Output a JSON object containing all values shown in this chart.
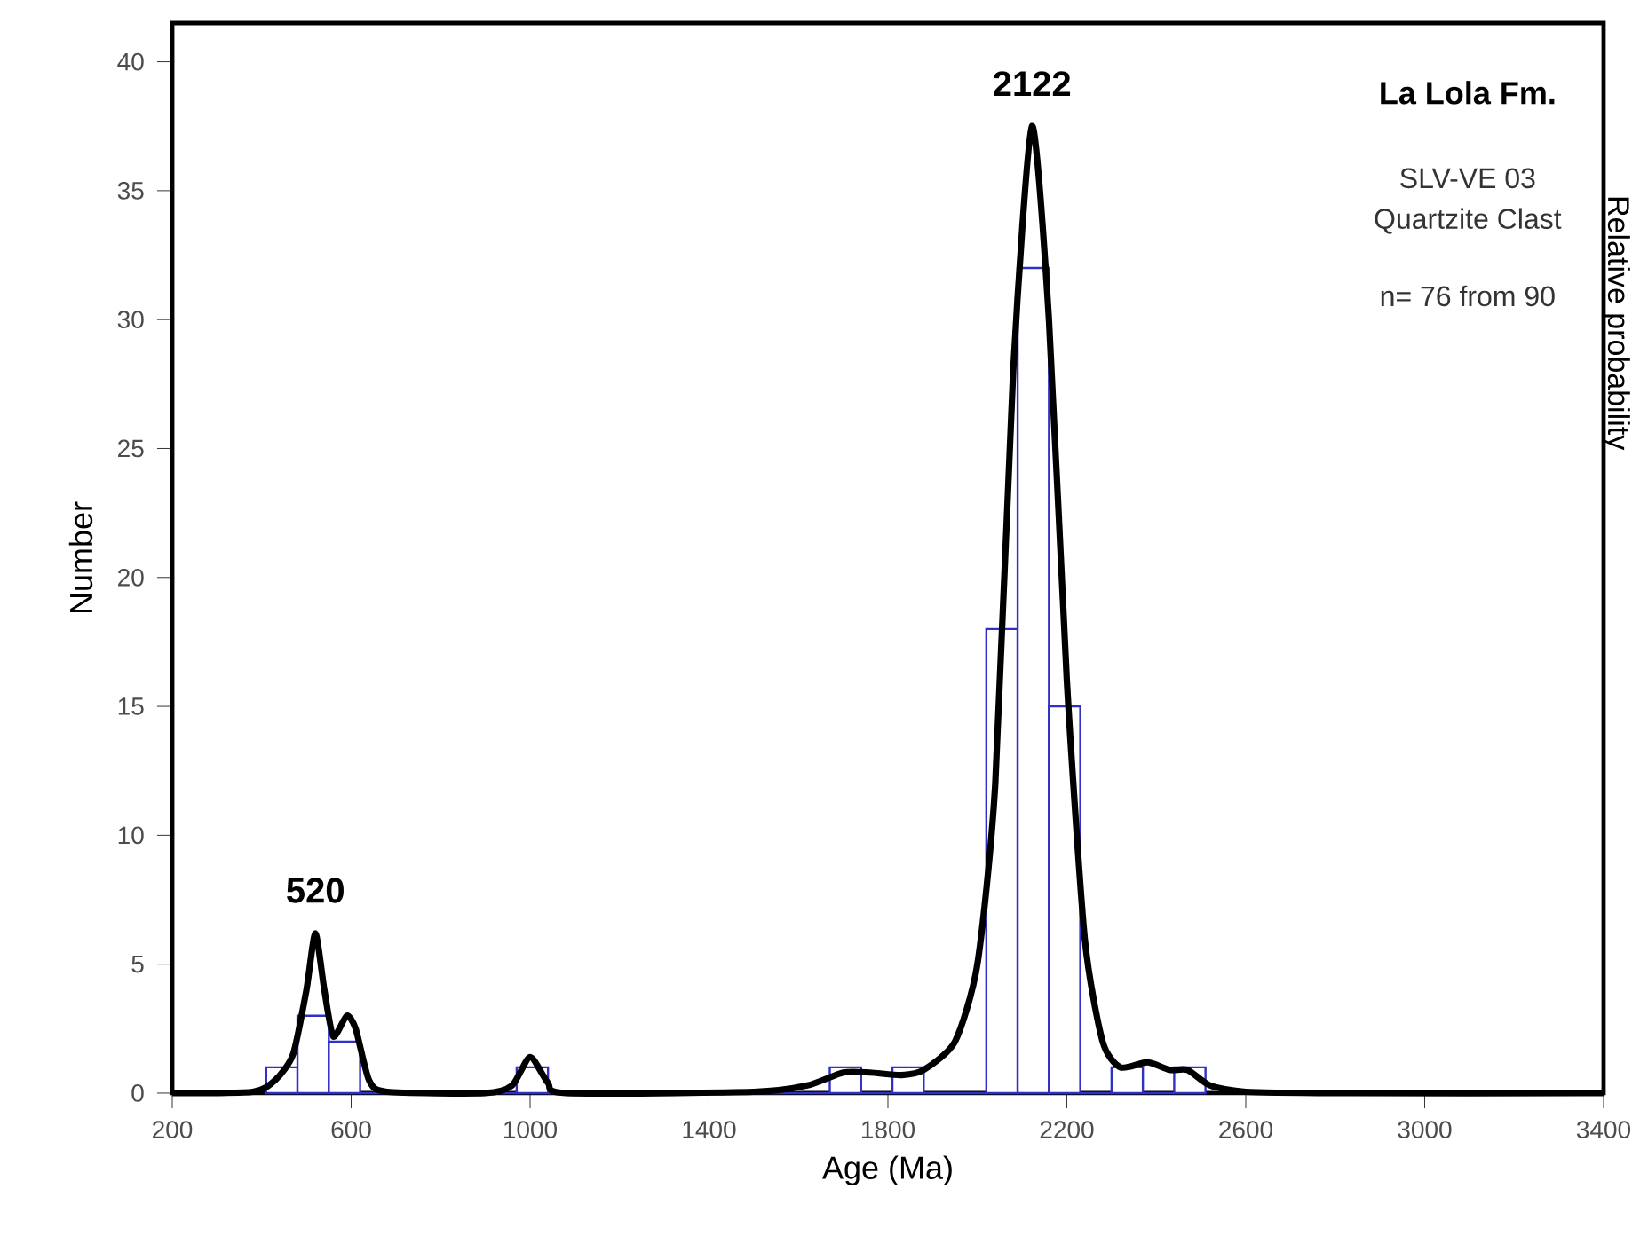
{
  "chart_data": {
    "type": "histogram",
    "title": "La Lola Fm.",
    "xlabel": "Age (Ma)",
    "ylabel": "Number",
    "y2label": "Relative probability",
    "bins": [
      410,
      480,
      550,
      620,
      690,
      760,
      830,
      900,
      970,
      1040,
      1110,
      1180,
      1250,
      1320,
      1390,
      1460,
      1530,
      1600,
      1670,
      1740,
      1810,
      1880,
      1950,
      2020,
      2090,
      2160,
      2230,
      2300,
      2370,
      2440,
      2510
    ],
    "values": [
      1,
      3,
      2,
      0,
      0,
      0,
      0,
      0,
      1,
      0,
      0,
      0,
      0,
      0,
      0,
      0,
      0,
      0,
      1,
      0,
      1,
      0,
      0,
      18,
      32,
      15,
      0,
      1,
      0,
      1
    ],
    "color": "#3030c8",
    "series": [
      {
        "type": "line",
        "color": "#000000",
        "x": [
          200,
          380,
          430,
          470,
          500,
          520,
          540,
          560,
          590,
          610,
          640,
          680,
          900,
          960,
          1000,
          1040,
          1080,
          1500,
          1620,
          1700,
          1760,
          1830,
          1880,
          1950,
          2000,
          2040,
          2080,
          2122,
          2160,
          2200,
          2240,
          2280,
          2320,
          2380,
          2430,
          2470,
          2520,
          2600,
          2800,
          3400
        ],
        "values": [
          0,
          0.05,
          0.5,
          1.5,
          4,
          6.2,
          4,
          2.2,
          3,
          2.5,
          0.5,
          0.05,
          0,
          0.3,
          1.4,
          0.4,
          0,
          0.05,
          0.3,
          0.8,
          0.8,
          0.7,
          0.9,
          2,
          5,
          12,
          28,
          37.5,
          30,
          16,
          6,
          2,
          1,
          1.2,
          0.9,
          0.9,
          0.3,
          0.05,
          0,
          0
        ]
      }
    ],
    "xlim": [
      200,
      3400
    ],
    "ylim": [
      0,
      41.5
    ],
    "xticks": [
      200,
      600,
      1000,
      1400,
      1800,
      2200,
      2600,
      3000,
      3400
    ],
    "yticks": [
      0,
      5,
      10,
      15,
      20,
      25,
      30,
      35,
      40
    ],
    "grid": false,
    "annotations": [
      {
        "text": "520",
        "x": 520,
        "y": 6.2
      },
      {
        "text": "2122",
        "x": 2122,
        "y": 37.5
      },
      "SLV-VE 03",
      "Quartzite Clast",
      "n= 76 from 90"
    ]
  }
}
